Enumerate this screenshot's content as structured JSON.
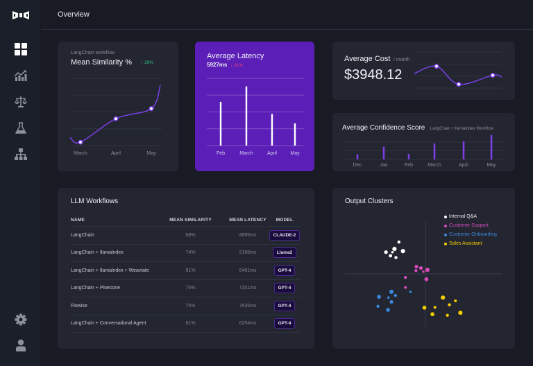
{
  "header": {
    "title": "Overview"
  },
  "sidebar": {
    "items": [
      {
        "name": "logo",
        "icon": "bowtie-logo-icon"
      },
      {
        "name": "dashboard",
        "icon": "grid-icon",
        "active": true
      },
      {
        "name": "analytics",
        "icon": "chart-growth-icon"
      },
      {
        "name": "evaluation",
        "icon": "scale-icon"
      },
      {
        "name": "experiments",
        "icon": "flask-icon"
      },
      {
        "name": "workflows",
        "icon": "hierarchy-icon"
      },
      {
        "name": "settings",
        "icon": "gear-icon"
      },
      {
        "name": "profile",
        "icon": "user-icon"
      }
    ]
  },
  "mean_similarity": {
    "sublabel": "LangChain workflow",
    "title": "Mean Similarity %",
    "delta": "20%",
    "delta_direction": "up",
    "chart_data": {
      "type": "line",
      "categories": [
        "March",
        "April",
        "May"
      ],
      "values": [
        5,
        40,
        55
      ],
      "ylim": [
        0,
        100
      ],
      "grid": true
    }
  },
  "avg_latency": {
    "title": "Average Latency",
    "value": "5927ms",
    "delta": "31%",
    "delta_direction": "down",
    "chart_data": {
      "type": "bar",
      "categories": [
        "Feb",
        "March",
        "April",
        "May"
      ],
      "values": [
        65,
        88,
        47,
        33
      ],
      "ylim": [
        0,
        100
      ],
      "grid": true
    }
  },
  "avg_cost": {
    "title": "Average Cost",
    "unit": "/ month",
    "value": "$3948.12",
    "chart_data": {
      "type": "line",
      "values": [
        70,
        80,
        20,
        45
      ],
      "ylim": [
        0,
        100
      ],
      "grid": true
    }
  },
  "avg_confidence": {
    "title": "Average Confidence Score",
    "sublabel": "LangChain + Ilamalndex Workflow",
    "chart_data": {
      "type": "bar",
      "categories": [
        "Dec",
        "Jan",
        "Feb",
        "March",
        "April",
        "May"
      ],
      "values": [
        20,
        50,
        22,
        62,
        70,
        95
      ],
      "ylim": [
        0,
        100
      ],
      "grid": true
    }
  },
  "workflows": {
    "title": "LLM Workflows",
    "columns": [
      "NAME",
      "MEAN SIMILARITY",
      "MEAN LATENCY",
      "MODEL"
    ],
    "rows": [
      {
        "name": "LangChain",
        "similarity": "68%",
        "latency": "4895ms",
        "model": "CLAUDE-2"
      },
      {
        "name": "LangChain + Ilamalndex",
        "similarity": "74%",
        "latency": "2166ms",
        "model": "Llama2"
      },
      {
        "name": "LangChain + Ilamalndex + Weaviate",
        "similarity": "81%",
        "latency": "5461ms",
        "model": "GPT-4"
      },
      {
        "name": "LangChain + Pinecone",
        "similarity": "76%",
        "latency": "7201ms",
        "model": "GPT-4"
      },
      {
        "name": "Flowise",
        "similarity": "75%",
        "latency": "7635ms",
        "model": "GPT-4"
      },
      {
        "name": "LangChain + Conversational Agent",
        "similarity": "61%",
        "latency": "6254ms",
        "model": "GPT-4"
      }
    ]
  },
  "clusters": {
    "title": "Output Clusters",
    "chart_data": {
      "type": "scatter",
      "xlim": [
        -10,
        10
      ],
      "ylim": [
        -10,
        10
      ],
      "series": [
        {
          "name": "Internal Q&A",
          "color": "#ffffff",
          "points": [
            [
              -5.3,
              8.8,
              1
            ],
            [
              -6.2,
              6.9,
              1.4
            ],
            [
              -4.5,
              6.3,
              1.4
            ],
            [
              -7.9,
              6.0,
              1.2
            ],
            [
              -6.6,
              6.0,
              0.8
            ],
            [
              -7.0,
              5.0,
              1.1
            ],
            [
              -5.9,
              4.5,
              1.0
            ]
          ]
        },
        {
          "name": "Customer Support",
          "color": "#d94bbd",
          "points": [
            [
              -1.8,
              2.0,
              1.2
            ],
            [
              -0.9,
              1.6,
              1.2
            ],
            [
              0.4,
              1.1,
              1.4
            ],
            [
              -1.9,
              0.9,
              1.0
            ],
            [
              -0.4,
              0.6,
              0.8
            ],
            [
              -4.0,
              -1.0,
              1.0
            ],
            [
              0.2,
              -1.5,
              1.3
            ],
            [
              -4.0,
              -3.8,
              0.9
            ]
          ]
        },
        {
          "name": "Customer Onboarding",
          "color": "#3a86d8",
          "points": [
            [
              -6.8,
              -5.0,
              1.4
            ],
            [
              -3.0,
              -5.0,
              0.8
            ],
            [
              -9.3,
              -6.4,
              1.3
            ],
            [
              -6.0,
              -6.0,
              1.0
            ],
            [
              -7.4,
              -6.6,
              0.8
            ],
            [
              -6.8,
              -7.8,
              1.2
            ],
            [
              -9.5,
              -9.0,
              1.0
            ],
            [
              -7.5,
              -10.0,
              1.3
            ]
          ]
        },
        {
          "name": "Sales Assistant",
          "color": "#f5cc00",
          "points": [
            [
              3.5,
              -6.6,
              1.4
            ],
            [
              6.0,
              -7.5,
              0.9
            ],
            [
              4.8,
              -8.6,
              1.0
            ],
            [
              -0.2,
              -9.4,
              1.3
            ],
            [
              1.9,
              -9.3,
              0.9
            ],
            [
              7.0,
              -10.8,
              1.4
            ],
            [
              1.4,
              -11.2,
              1.3
            ],
            [
              4.4,
              -11.5,
              1.0
            ]
          ]
        }
      ]
    }
  }
}
